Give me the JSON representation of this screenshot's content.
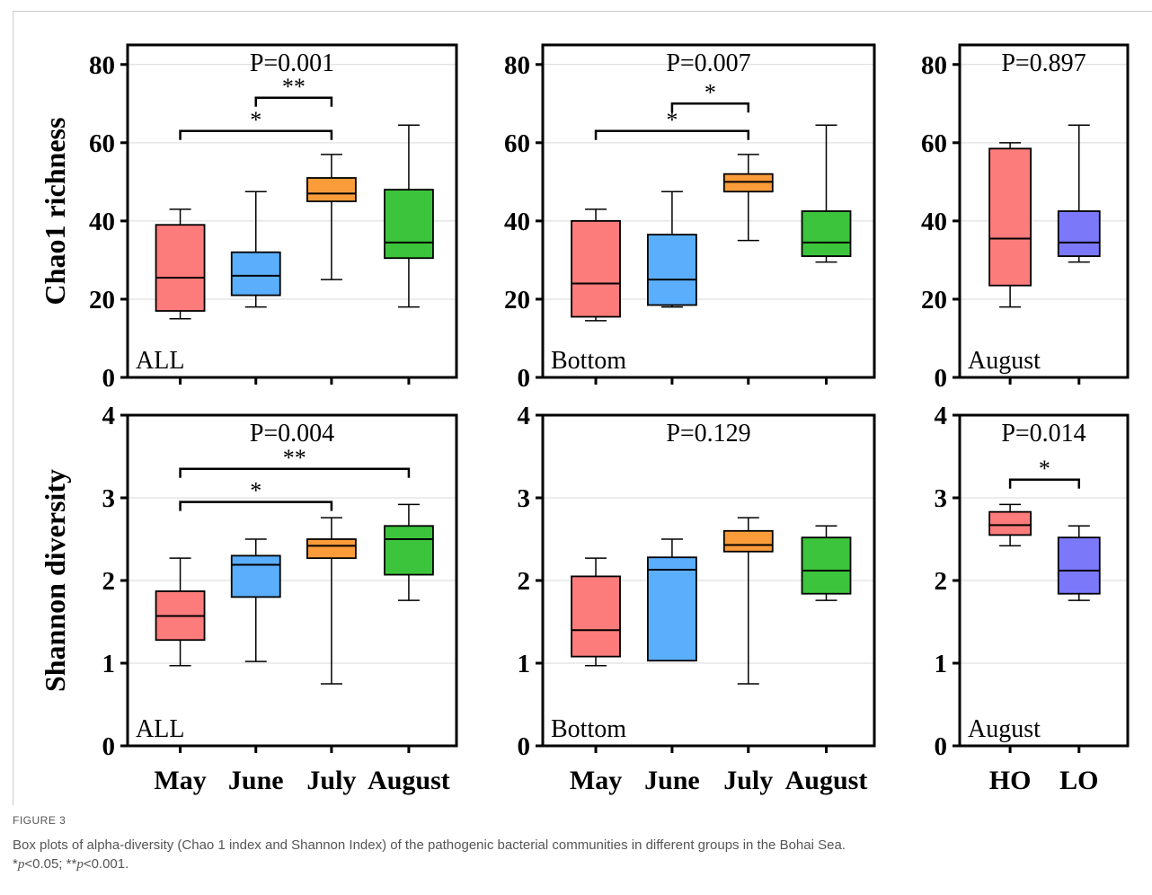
{
  "figure": {
    "label": "FIGURE 3",
    "caption": "Box plots of alpha-diversity (Chao 1 index and Shannon Index) of the pathogenic bacterial communities in different groups in the Bohai Sea.",
    "footnote_1_prefix": "*",
    "footnote_1_p": "p",
    "footnote_1_rest": "<0.05; **",
    "footnote_2_p": "p",
    "footnote_2_rest": "<0.001."
  },
  "colors": {
    "May": "#fc7b7b",
    "June": "#5aaefc",
    "July": "#fa9c3a",
    "August": "#3cc43c",
    "HO": "#fc7b7b",
    "LO": "#7b78fa",
    "axis": "#000000",
    "grid": "#d9d9d9"
  },
  "chart_data": [
    {
      "type": "box",
      "panel": "top-left",
      "ylabel": "Chao1 richness",
      "ylim": [
        0,
        85
      ],
      "yticks": [
        0,
        20,
        40,
        60,
        80
      ],
      "p_label": "P=0.001",
      "corner_label": "ALL",
      "categories": [
        "May",
        "June",
        "July",
        "August"
      ],
      "show_xticklabels": false,
      "boxes": [
        {
          "name": "May",
          "min": 15,
          "q1": 17,
          "median": 25.5,
          "q3": 39,
          "max": 43
        },
        {
          "name": "June",
          "min": 18,
          "q1": 21,
          "median": 26,
          "q3": 32,
          "max": 47.5
        },
        {
          "name": "July",
          "min": 25,
          "q1": 45,
          "median": 47,
          "q3": 51,
          "max": 57
        },
        {
          "name": "August",
          "min": 18,
          "q1": 30.5,
          "median": 34.5,
          "q3": 48,
          "max": 64.5
        }
      ],
      "brackets": [
        {
          "from": 0,
          "to": 2,
          "y": 63,
          "label": "*"
        },
        {
          "from": 1,
          "to": 2,
          "y": 71.5,
          "label": "**"
        }
      ]
    },
    {
      "type": "box",
      "panel": "top-middle",
      "ylabel": "",
      "ylim": [
        0,
        85
      ],
      "yticks": [
        0,
        20,
        40,
        60,
        80
      ],
      "p_label": "P=0.007",
      "corner_label": "Bottom",
      "categories": [
        "May",
        "June",
        "July",
        "August"
      ],
      "show_xticklabels": false,
      "boxes": [
        {
          "name": "May",
          "min": 14.5,
          "q1": 15.5,
          "median": 24,
          "q3": 40,
          "max": 43
        },
        {
          "name": "June",
          "min": 18,
          "q1": 18.5,
          "median": 25,
          "q3": 36.5,
          "max": 47.5
        },
        {
          "name": "July",
          "min": 35,
          "q1": 47.5,
          "median": 50,
          "q3": 52,
          "max": 57
        },
        {
          "name": "August",
          "min": 29.5,
          "q1": 31,
          "median": 34.5,
          "q3": 42.5,
          "max": 64.5
        }
      ],
      "brackets": [
        {
          "from": 0,
          "to": 2,
          "y": 63,
          "label": "*"
        },
        {
          "from": 1,
          "to": 2,
          "y": 70,
          "label": "*"
        }
      ]
    },
    {
      "type": "box",
      "panel": "top-right",
      "ylabel": "",
      "ylim": [
        0,
        85
      ],
      "yticks": [
        0,
        20,
        40,
        60,
        80
      ],
      "p_label": "P=0.897",
      "corner_label": "August",
      "categories": [
        "HO",
        "LO"
      ],
      "show_xticklabels": false,
      "boxes": [
        {
          "name": "HO",
          "min": 18,
          "q1": 23.5,
          "median": 35.5,
          "q3": 58.5,
          "max": 60
        },
        {
          "name": "LO",
          "min": 29.5,
          "q1": 31,
          "median": 34.5,
          "q3": 42.5,
          "max": 64.5
        }
      ],
      "brackets": []
    },
    {
      "type": "box",
      "panel": "bottom-left",
      "ylabel": "Shannon diversity",
      "ylim": [
        0,
        4
      ],
      "yticks": [
        0,
        1,
        2,
        3,
        4
      ],
      "p_label": "P=0.004",
      "corner_label": "ALL",
      "categories": [
        "May",
        "June",
        "July",
        "August"
      ],
      "show_xticklabels": true,
      "boxes": [
        {
          "name": "May",
          "min": 0.97,
          "q1": 1.28,
          "median": 1.57,
          "q3": 1.87,
          "max": 2.27
        },
        {
          "name": "June",
          "min": 1.02,
          "q1": 1.8,
          "median": 2.19,
          "q3": 2.3,
          "max": 2.5
        },
        {
          "name": "July",
          "min": 0.75,
          "q1": 2.27,
          "median": 2.42,
          "q3": 2.5,
          "max": 2.76
        },
        {
          "name": "August",
          "min": 1.76,
          "q1": 2.07,
          "median": 2.5,
          "q3": 2.66,
          "max": 2.92
        }
      ],
      "brackets": [
        {
          "from": 0,
          "to": 2,
          "y": 2.95,
          "label": "*"
        },
        {
          "from": 0,
          "to": 3,
          "y": 3.35,
          "label": "**"
        }
      ]
    },
    {
      "type": "box",
      "panel": "bottom-middle",
      "ylabel": "",
      "ylim": [
        0,
        4
      ],
      "yticks": [
        0,
        1,
        2,
        3,
        4
      ],
      "p_label": "P=0.129",
      "corner_label": "Bottom",
      "categories": [
        "May",
        "June",
        "July",
        "August"
      ],
      "show_xticklabels": true,
      "boxes": [
        {
          "name": "May",
          "min": 0.97,
          "q1": 1.08,
          "median": 1.4,
          "q3": 2.05,
          "max": 2.27
        },
        {
          "name": "June",
          "min": 1.03,
          "q1": 1.03,
          "median": 2.13,
          "q3": 2.28,
          "max": 2.5
        },
        {
          "name": "July",
          "min": 0.75,
          "q1": 2.35,
          "median": 2.43,
          "q3": 2.6,
          "max": 2.76
        },
        {
          "name": "August",
          "min": 1.76,
          "q1": 1.84,
          "median": 2.12,
          "q3": 2.52,
          "max": 2.66
        }
      ],
      "brackets": []
    },
    {
      "type": "box",
      "panel": "bottom-right",
      "ylabel": "",
      "ylim": [
        0,
        4
      ],
      "yticks": [
        0,
        1,
        2,
        3,
        4
      ],
      "p_label": "P=0.014",
      "corner_label": "August",
      "categories": [
        "HO",
        "LO"
      ],
      "show_xticklabels": true,
      "boxes": [
        {
          "name": "HO",
          "min": 2.42,
          "q1": 2.55,
          "median": 2.67,
          "q3": 2.83,
          "max": 2.92
        },
        {
          "name": "LO",
          "min": 1.76,
          "q1": 1.84,
          "median": 2.12,
          "q3": 2.52,
          "max": 2.66
        }
      ],
      "brackets": [
        {
          "from": 0,
          "to": 1,
          "y": 3.22,
          "label": "*"
        }
      ]
    }
  ]
}
